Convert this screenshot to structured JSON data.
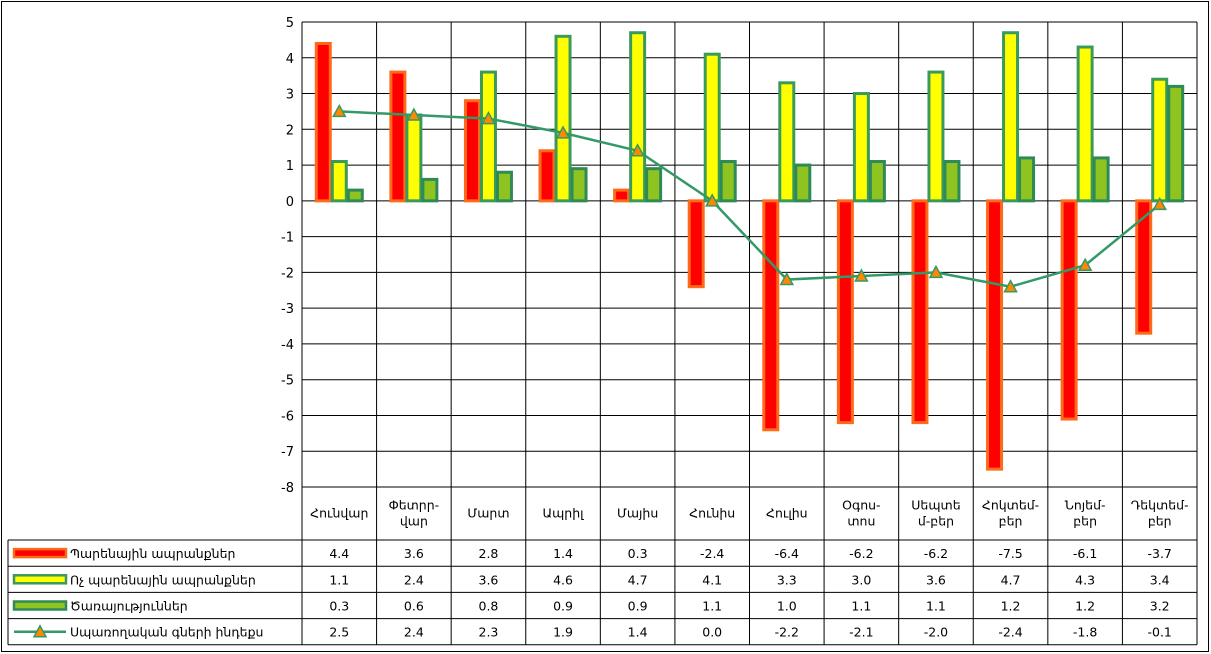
{
  "chart_data": {
    "type": "bar",
    "categories": [
      [
        "Հունվար"
      ],
      [
        "Փետրր-",
        "վար"
      ],
      [
        "Մարտ"
      ],
      [
        "Ապրիլ"
      ],
      [
        "Մայիս"
      ],
      [
        "Հունիս"
      ],
      [
        "Հուլիս"
      ],
      [
        "Օգոս-",
        "տոս"
      ],
      [
        "Սեպտե",
        "մ-բեր"
      ],
      [
        "Հոկտեմ-",
        "բեր"
      ],
      [
        "Նոյեմ-",
        "բեր"
      ],
      [
        "Դեկտեմ-",
        "բեր"
      ]
    ],
    "series": [
      {
        "name": "Պարենային ապրանքներ",
        "type": "bar",
        "color": "#ff0000",
        "border": "#ff6a1a",
        "values": [
          4.4,
          3.6,
          2.8,
          1.4,
          0.3,
          -2.4,
          -6.4,
          -6.2,
          -6.2,
          -7.5,
          -6.1,
          -3.7
        ],
        "labels": [
          "4.4",
          "3.6",
          "2.8",
          "1.4",
          "0.3",
          "-2.4",
          "-6.4",
          "-6.2",
          "-6.2",
          "-7.5",
          "-6.1",
          "-3.7"
        ]
      },
      {
        "name": "Ոչ պարենային  ապրանքներ",
        "type": "bar",
        "color": "#ffff00",
        "border": "#3a9a5a",
        "values": [
          1.1,
          2.4,
          3.6,
          4.6,
          4.7,
          4.1,
          3.3,
          3.0,
          3.6,
          4.7,
          4.3,
          3.4
        ],
        "labels": [
          "1.1",
          "2.4",
          "3.6",
          "4.6",
          "4.7",
          "4.1",
          "3.3",
          "3.0",
          "3.6",
          "4.7",
          "4.3",
          "3.4"
        ]
      },
      {
        "name": "Ծառայություններ",
        "type": "bar",
        "color": "#8fc31f",
        "border": "#2e8b57",
        "values": [
          0.3,
          0.6,
          0.8,
          0.9,
          0.9,
          1.1,
          1.0,
          1.1,
          1.1,
          1.2,
          1.2,
          3.2
        ],
        "labels": [
          "0.3",
          "0.6",
          "0.8",
          "0.9",
          "0.9",
          "1.1",
          "1.0",
          "1.1",
          "1.1",
          "1.2",
          "1.2",
          "3.2"
        ]
      },
      {
        "name": "Սպառողական գների ինդեքս",
        "type": "line",
        "color": "#339966",
        "marker_fill": "#ff8800",
        "values": [
          2.5,
          2.4,
          2.3,
          1.9,
          1.4,
          0.0,
          -2.2,
          -2.1,
          -2.0,
          -2.4,
          -1.8,
          -0.1
        ],
        "labels": [
          "2.5",
          "2.4",
          "2.3",
          "1.9",
          "1.4",
          "0.0",
          "-2.2",
          "-2.1",
          "-2.0",
          "-2.4",
          "-1.8",
          "-0.1"
        ]
      }
    ],
    "yticks": [
      "5",
      "4",
      "3",
      "2",
      "1",
      "0",
      "-1",
      "-2",
      "-3",
      "-4",
      "-5",
      "-6",
      "-7",
      "-8"
    ],
    "ylim": [
      -8,
      5
    ],
    "grid": true,
    "legend": "data-table"
  }
}
